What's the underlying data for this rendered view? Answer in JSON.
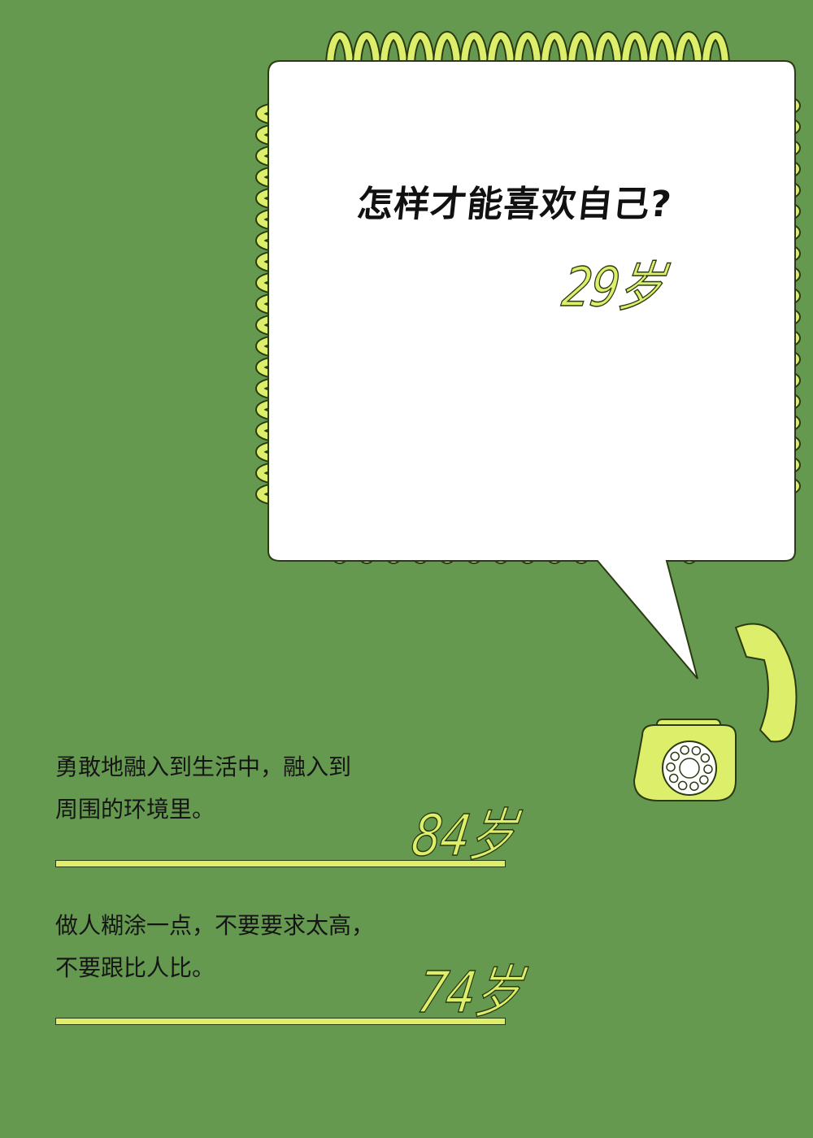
{
  "question": {
    "text": "怎样才能喜欢自己?",
    "age": "29岁"
  },
  "answers": [
    {
      "line1": "勇敢地融入到生活中，融入到",
      "line2": "周围的环境里。",
      "age": "84岁"
    },
    {
      "line1": "做人糊涂一点，不要要求太高，",
      "line2": "不要跟比人比。",
      "age": "74岁"
    }
  ],
  "colors": {
    "background": "#64994f",
    "accent": "#ddee6a",
    "outline": "#2a3a12"
  }
}
